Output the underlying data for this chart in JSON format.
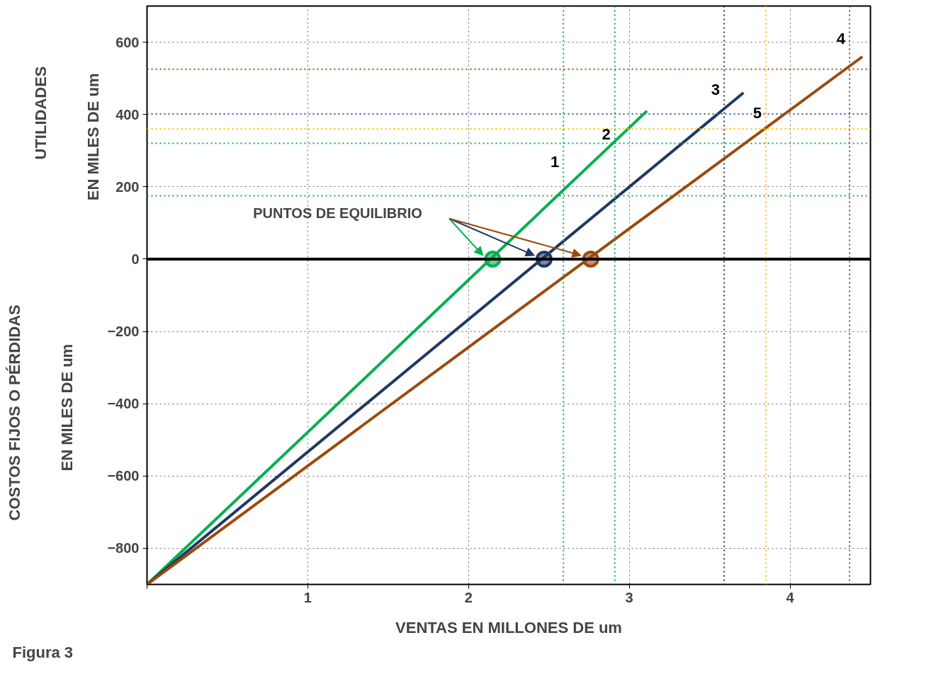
{
  "chart_data": {
    "type": "line",
    "xlabel": "VENTAS EN MILLONES DE um",
    "annotations": [
      "UTILIDADES",
      "EN MILES DE um",
      "COSTOS FIJOS O PÉRDIDAS",
      "EN MILES DE um",
      "Figura 3",
      "PUNTOS DE EQUILIBRIO",
      {
        "text": "1",
        "x": 2.59,
        "y": 255
      },
      {
        "text": "2",
        "x": 2.91,
        "y": 330
      },
      {
        "text": "3",
        "x": 3.59,
        "y": 455
      },
      {
        "text": "4",
        "x": 4.37,
        "y": 595
      },
      {
        "text": "5",
        "x": 3.85,
        "y": 390
      }
    ],
    "xlim": [
      0,
      4.5
    ],
    "ylim": [
      -900,
      700
    ],
    "xticks": [
      {
        "value": 0,
        "label": null
      },
      1,
      2,
      3,
      4
    ],
    "yticks": [
      -800,
      -600,
      -400,
      -200,
      0,
      200,
      400,
      600
    ],
    "grid": true,
    "marker": "none",
    "line_style": "solid",
    "series": [
      {
        "color": "#00b050",
        "x": [
          0,
          3.11
        ],
        "values": [
          -900,
          410
        ]
      },
      {
        "color": "#1f3864",
        "x": [
          0,
          3.71
        ],
        "values": [
          -900,
          460
        ]
      },
      {
        "color": "#9c4a0c",
        "x": [
          0,
          4.45
        ],
        "values": [
          -900,
          560
        ]
      },
      {
        "type": "scatter",
        "marker": "circle",
        "x": [
          2.15,
          2.47,
          2.76
        ],
        "values": [
          0,
          0,
          0
        ],
        "colors": [
          "#00b050",
          "#1f3864",
          "#9c4a0c"
        ]
      }
    ],
    "ref_lines": [
      {
        "axis": "y",
        "value": 0,
        "color": "#000000",
        "line_style": "solid"
      },
      {
        "axis": "y",
        "value": 175,
        "color": "#00b050",
        "line_style": "dotted"
      },
      {
        "axis": "y",
        "value": 320,
        "color": "#00b050",
        "line_style": "dotted"
      },
      {
        "axis": "y",
        "value": 360,
        "color": "#ffc000",
        "line_style": "dotted"
      },
      {
        "axis": "y",
        "value": 402,
        "color": "#4472c4",
        "line_style": "dotted"
      },
      {
        "axis": "y",
        "value": 525,
        "color": "#9c4a0c",
        "line_style": "dotted"
      },
      {
        "axis": "x",
        "value": 2.59,
        "color": "#00b050",
        "line_style": "dotted"
      },
      {
        "axis": "x",
        "value": 2.91,
        "color": "#00b050",
        "line_style": "dotted"
      },
      {
        "axis": "x",
        "value": 3.59,
        "color": "#1f3864",
        "line_style": "dotted"
      },
      {
        "axis": "x",
        "value": 4.37,
        "color": "#9c4a0c",
        "line_style": "dotted"
      },
      {
        "axis": "x",
        "value": 3.85,
        "color": "#ffc000",
        "line_style": "dotted"
      }
    ]
  }
}
